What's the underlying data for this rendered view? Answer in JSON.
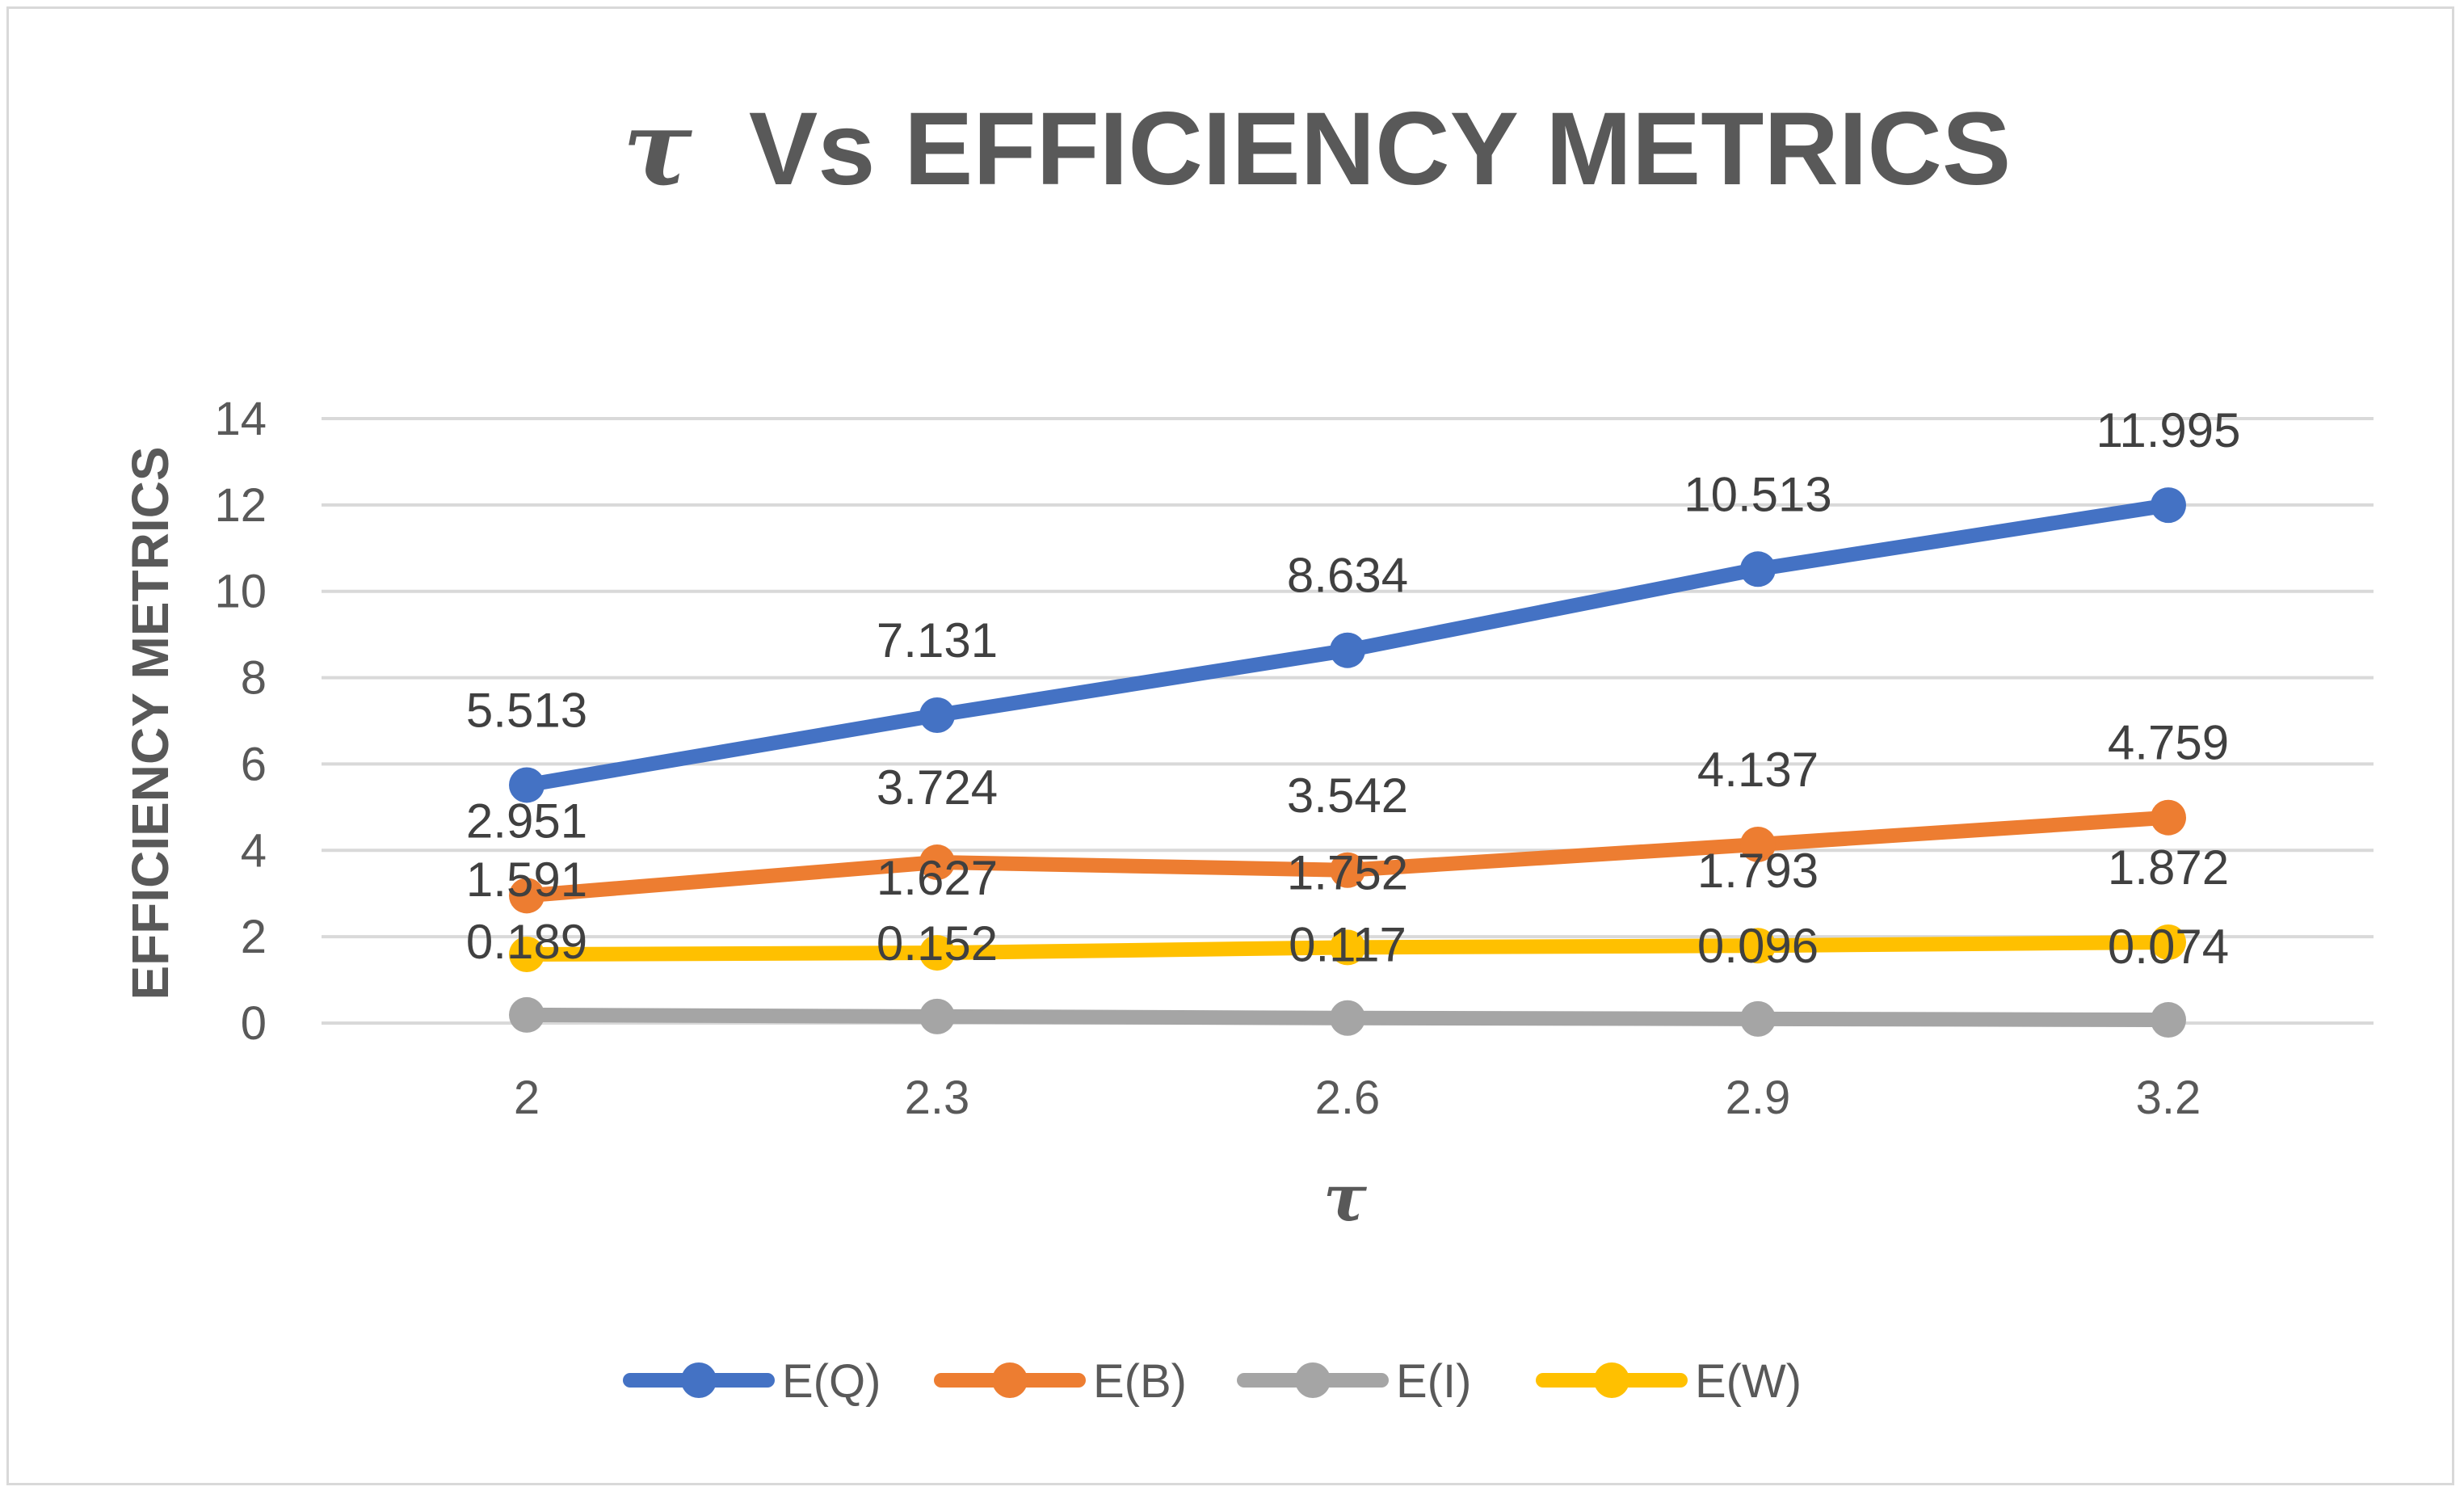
{
  "chart_data": {
    "type": "line",
    "title_symbol": "τ",
    "title_rest": "Vs EFFICIENCY METRICS",
    "xlabel": "τ",
    "ylabel": "EFFICIENCY METRICS",
    "categories": [
      "2",
      "2.3",
      "2.6",
      "2.9",
      "3.2"
    ],
    "ylim": [
      0,
      14
    ],
    "yticks": [
      0,
      2,
      4,
      6,
      8,
      10,
      12,
      14
    ],
    "grid": true,
    "legend_position": "bottom",
    "series": [
      {
        "name": "E(Q)",
        "color": "#4472C4",
        "values": [
          5.513,
          7.131,
          8.634,
          10.513,
          11.995
        ],
        "labels": [
          "5.513",
          "7.131",
          "8.634",
          "10.513",
          "11.995"
        ]
      },
      {
        "name": "E(B)",
        "color": "#ED7D31",
        "values": [
          2.951,
          3.724,
          3.542,
          4.137,
          4.759
        ],
        "labels": [
          "2.951",
          "3.724",
          "3.542",
          "4.137",
          "4.759"
        ]
      },
      {
        "name": "E(I)",
        "color": "#A5A5A5",
        "values": [
          0.189,
          0.152,
          0.117,
          0.096,
          0.074
        ],
        "labels": [
          "0.189",
          "0.152",
          "0.117",
          "0.096",
          "0.074"
        ]
      },
      {
        "name": "E(W)",
        "color": "#FFC000",
        "values": [
          1.591,
          1.627,
          1.752,
          1.793,
          1.872
        ],
        "labels": [
          "1.591",
          "1.627",
          "1.752",
          "1.793",
          "1.872"
        ]
      }
    ]
  }
}
